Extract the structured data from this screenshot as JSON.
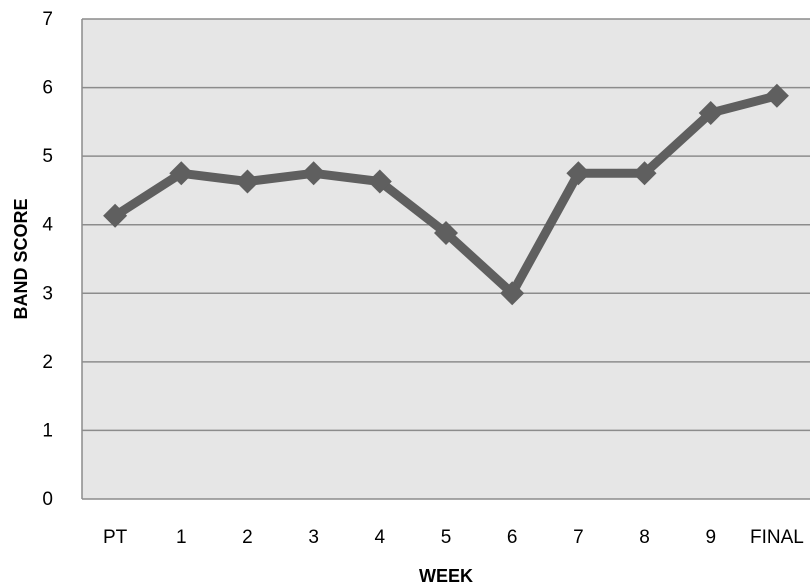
{
  "chart_data": {
    "type": "line",
    "title": "",
    "xlabel": "WEEK",
    "ylabel": "BAND SCORE",
    "categories": [
      "PT",
      "1",
      "2",
      "3",
      "4",
      "5",
      "6",
      "7",
      "8",
      "9",
      "FINAL"
    ],
    "series": [
      {
        "values": [
          4.13,
          4.75,
          4.63,
          4.75,
          4.63,
          3.88,
          3.0,
          4.75,
          4.75,
          5.63,
          5.88
        ]
      }
    ],
    "ylim": [
      0,
      7
    ],
    "yticks": [
      "0",
      "1",
      "2",
      "3",
      "4",
      "5",
      "6",
      "7"
    ],
    "grid": "horizontal",
    "legend": "none",
    "colors": {
      "plot_background": "#e6e6e6",
      "gridline": "#8c8c8c",
      "line": "#5f5f5f",
      "marker": "#5f5f5f"
    }
  }
}
